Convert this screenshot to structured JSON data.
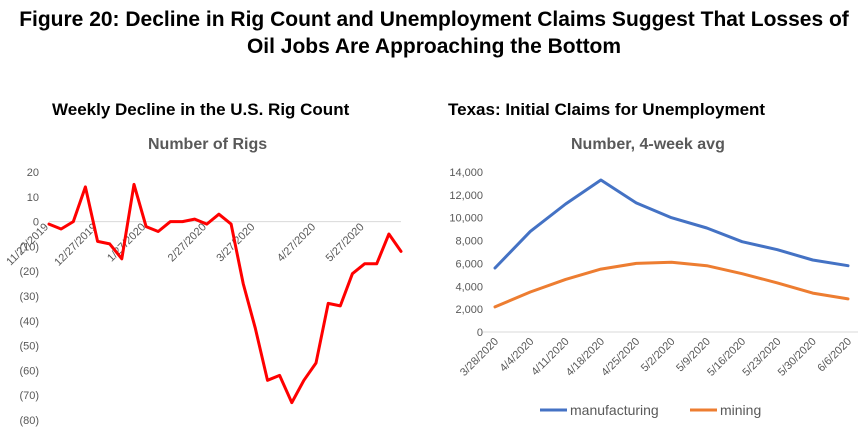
{
  "figure": {
    "title_line1": "Figure 20: Decline in Rig Count and Unemployment Claims Suggest That Losses of",
    "title_line2": "Oil Jobs Are Approaching the Bottom"
  },
  "chart_data": [
    {
      "type": "line",
      "title": "Weekly Decline in the U.S. Rig Count",
      "subtitle": "Number of Rigs",
      "xlabel": "",
      "ylabel": "",
      "ylim": [
        -80,
        20
      ],
      "y_ticks": [
        "20",
        "10",
        "0",
        "(10)",
        "(20)",
        "(30)",
        "(40)",
        "(50)",
        "(60)",
        "(70)",
        "(80)"
      ],
      "y_tick_values": [
        20,
        10,
        0,
        -10,
        -20,
        -30,
        -40,
        -50,
        -60,
        -70,
        -80
      ],
      "x_tick_labels": [
        "11/27/2019",
        "12/27/2019",
        "1/27/2020",
        "2/27/2020",
        "3/27/2020",
        "4/27/2020",
        "5/27/2020"
      ],
      "x_tick_index": [
        0,
        4,
        8,
        13,
        17,
        22,
        26
      ],
      "series": [
        {
          "color": "#ff0000",
          "values": [
            -1,
            -3,
            0,
            14,
            -8,
            -9,
            -15,
            15,
            -2,
            -4,
            0,
            0,
            1,
            -1,
            3,
            -1,
            -25,
            -43,
            -64,
            -62,
            -73,
            -64,
            -57,
            -33,
            -34,
            -21,
            -17,
            -17,
            -5,
            -12
          ]
        }
      ],
      "grid": false,
      "legend": "none"
    },
    {
      "type": "line",
      "title": "Texas: Initial Claims for Unemployment",
      "subtitle": "Number, 4-week avg",
      "xlabel": "",
      "ylabel": "",
      "ylim": [
        0,
        14000
      ],
      "y_ticks": [
        "14,000",
        "12,000",
        "10,000",
        "8,000",
        "6,000",
        "4,000",
        "2,000",
        "0"
      ],
      "y_tick_values": [
        14000,
        12000,
        10000,
        8000,
        6000,
        4000,
        2000,
        0
      ],
      "categories": [
        "3/28/2020",
        "4/4/2020",
        "4/11/2020",
        "4/18/2020",
        "4/25/2020",
        "5/2/2020",
        "5/9/2020",
        "5/16/2020",
        "5/23/2020",
        "5/30/2020",
        "6/6/2020"
      ],
      "series": [
        {
          "name": "manufacturing",
          "color": "#4472c4",
          "values": [
            5600,
            8800,
            11200,
            13300,
            11300,
            10000,
            9100,
            7900,
            7200,
            6300,
            5800
          ]
        },
        {
          "name": "mining",
          "color": "#ed7d31",
          "values": [
            2200,
            3500,
            4600,
            5500,
            6000,
            6100,
            5800,
            5100,
            4300,
            3400,
            2900
          ]
        }
      ],
      "grid": false,
      "legend": "bottom"
    }
  ]
}
